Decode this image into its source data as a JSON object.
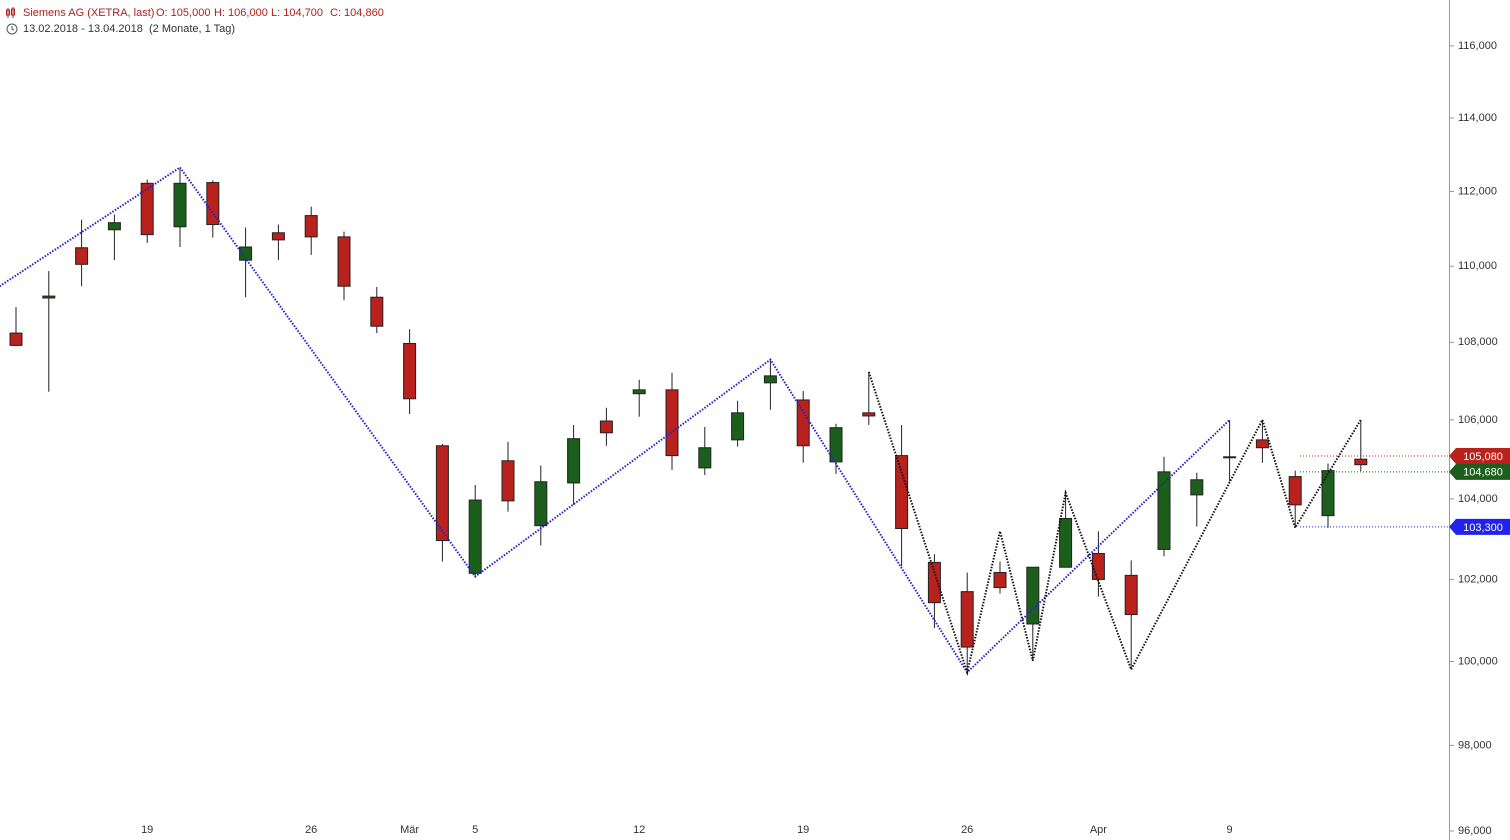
{
  "chart_data": {
    "type": "candlestick",
    "title": "Siemens AG (XETRA, last)",
    "ohlc_labels": [
      "O: 105,000",
      "H: 106,000",
      "L: 104,700",
      "C: 104,860"
    ],
    "subtitle": "13.02.2018 - 13.04.2018",
    "period": "(2 Monate, 1 Tag)",
    "categories": [
      null,
      null,
      null,
      null,
      "19",
      null,
      null,
      null,
      null,
      "26",
      null,
      null,
      "Mär",
      null,
      "5",
      null,
      null,
      null,
      null,
      "12",
      null,
      null,
      null,
      null,
      "19",
      null,
      null,
      null,
      null,
      "26",
      null,
      null,
      null,
      "Apr",
      null,
      null,
      null,
      "9",
      null,
      null,
      null,
      null
    ],
    "open": [
      108.24,
      109.16,
      110.49,
      110.97,
      112.22,
      111.05,
      112.24,
      110.16,
      110.89,
      111.35,
      110.78,
      109.18,
      107.97,
      105.34,
      102.15,
      104.96,
      103.33,
      104.4,
      105.97,
      106.67,
      106.77,
      104.78,
      105.49,
      106.95,
      106.51,
      104.93,
      106.18,
      105.09,
      102.42,
      101.7,
      102.17,
      100.91,
      102.3,
      102.64,
      102.1,
      102.74,
      104.1,
      105.04,
      105.49,
      104.56,
      103.58,
      105.0
    ],
    "high": [
      108.92,
      109.87,
      111.24,
      111.38,
      112.32,
      112.65,
      112.3,
      111.03,
      111.11,
      111.59,
      110.92,
      109.45,
      108.34,
      105.39,
      104.35,
      105.44,
      104.84,
      105.87,
      106.31,
      107.03,
      107.21,
      105.82,
      106.49,
      107.55,
      106.74,
      105.9,
      107.23,
      105.87,
      102.62,
      102.17,
      102.44,
      102.3,
      104.15,
      103.19,
      102.47,
      105.06,
      104.66,
      106.0,
      106.0,
      104.71,
      104.89,
      106.0
    ],
    "low": [
      107.9,
      106.72,
      109.47,
      110.16,
      110.62,
      110.51,
      110.76,
      109.18,
      110.16,
      110.3,
      109.1,
      108.24,
      106.15,
      102.44,
      102.07,
      103.68,
      102.84,
      103.85,
      105.34,
      106.08,
      104.73,
      104.6,
      105.32,
      106.26,
      104.91,
      104.63,
      105.87,
      102.32,
      100.81,
      99.74,
      101.65,
      100.02,
      102.3,
      101.58,
      99.81,
      102.57,
      103.31,
      104.44,
      104.91,
      103.28,
      103.28,
      104.7
    ],
    "close": [
      107.92,
      109.21,
      110.05,
      111.16,
      110.84,
      112.22,
      111.11,
      110.51,
      110.7,
      110.78,
      109.47,
      108.42,
      106.54,
      102.96,
      103.97,
      103.95,
      104.43,
      105.52,
      105.67,
      106.77,
      105.09,
      105.29,
      106.18,
      107.13,
      105.34,
      105.8,
      106.1,
      103.26,
      101.43,
      100.35,
      101.8,
      102.3,
      103.51,
      102.0,
      101.14,
      104.68,
      104.48,
      105.06,
      105.29,
      103.85,
      104.71,
      104.86
    ],
    "up_color": "#1c5e1c",
    "down_color": "#b8211c",
    "ylim": [
      95.79,
      117.29
    ],
    "log_scale": true,
    "yticks": [
      {
        "value": 96,
        "label": "96,000"
      },
      {
        "value": 98,
        "label": "98,000"
      },
      {
        "value": 100,
        "label": "100,000"
      },
      {
        "value": 102,
        "label": "102,000"
      },
      {
        "value": 104,
        "label": "104,000"
      },
      {
        "value": 106,
        "label": "106,000"
      },
      {
        "value": 108,
        "label": "108,000"
      },
      {
        "value": 110,
        "label": "110,000"
      },
      {
        "value": 112,
        "label": "112,000"
      },
      {
        "value": 114,
        "label": "114,000"
      },
      {
        "value": 116,
        "label": "116,000"
      }
    ],
    "overlays": [
      {
        "color": "#2222cc",
        "x": [
          -0.5,
          5,
          14,
          23,
          29,
          37
        ],
        "values": [
          109.47,
          112.65,
          102.07,
          107.55,
          99.74,
          106.0
        ]
      },
      {
        "color": "#111111",
        "x": [
          26,
          29,
          30,
          31,
          32,
          34,
          38,
          39,
          41
        ],
        "values": [
          107.23,
          99.74,
          103.19,
          100.02,
          104.15,
          99.81,
          106.0,
          103.28,
          106.0
        ]
      }
    ],
    "price_markers": [
      {
        "value": 105.08,
        "label": "105,080",
        "color": "#b8211c"
      },
      {
        "value": 104.68,
        "label": "104,680",
        "color": "#1c5e1c"
      },
      {
        "value": 103.3,
        "label": "103,300",
        "color": "#2222ee"
      }
    ]
  }
}
